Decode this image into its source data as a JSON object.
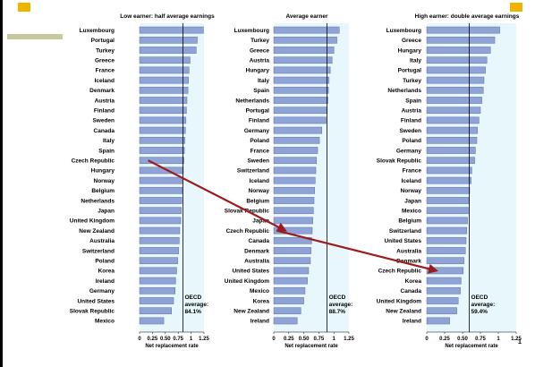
{
  "slide_number": "1",
  "colors": {
    "bar": "#8fa3d6",
    "bar_edge": "#5f72a8",
    "plot_bg": "#e8f7fb",
    "arrow": "#9b1c1c",
    "accent_gold": "#f0b400",
    "accent_olive": "#c8c8a0"
  },
  "arrow_path": [
    "Czech Republic",
    "Czech Republic",
    "Czech Republic"
  ],
  "chart_data": [
    {
      "type": "bar",
      "orientation": "horizontal",
      "title": "Low earner: half average earnings",
      "xlabel": "Net replacement rate",
      "xlim": [
        0,
        1.25
      ],
      "xticks": [
        "0",
        "0.25",
        "0.50",
        "0.75",
        "1",
        "1.25"
      ],
      "average_line": 0.841,
      "annotation": [
        "OECD",
        "average:",
        "84.1%"
      ],
      "categories": [
        "Luxembourg",
        "Portugal",
        "Turkey",
        "Greece",
        "France",
        "Iceland",
        "Denmark",
        "Austria",
        "Finland",
        "Sweden",
        "Canada",
        "Italy",
        "Spain",
        "Czech Republic",
        "Hungary",
        "Norway",
        "Belgium",
        "Netherlands",
        "Japan",
        "United Kingdom",
        "New Zealand",
        "Australia",
        "Switzerland",
        "Poland",
        "Korea",
        "Ireland",
        "Germany",
        "United States",
        "Slovak Republic",
        "Mexico"
      ],
      "values": [
        1.24,
        1.12,
        1.1,
        0.98,
        0.96,
        0.95,
        0.94,
        0.92,
        0.91,
        0.9,
        0.89,
        0.88,
        0.87,
        0.86,
        0.85,
        0.84,
        0.83,
        0.82,
        0.81,
        0.8,
        0.78,
        0.77,
        0.76,
        0.74,
        0.72,
        0.7,
        0.69,
        0.66,
        0.62,
        0.47
      ]
    },
    {
      "type": "bar",
      "orientation": "horizontal",
      "title": "Average earner",
      "xlabel": "Net replacement rate",
      "xlim": [
        0,
        1.25
      ],
      "xticks": [
        "0",
        "0.25",
        "0.50",
        "0.75",
        "1",
        "1.25"
      ],
      "average_line": 0.887,
      "annotation": [
        "OECD",
        "average:",
        "88.7%"
      ],
      "categories": [
        "Luxembourg",
        "Turkey",
        "Greece",
        "Austria",
        "Hungary",
        "Italy",
        "Spain",
        "Netherlands",
        "Portugal",
        "Finland",
        "Germany",
        "Poland",
        "France",
        "Sweden",
        "Switzerland",
        "Iceland",
        "Norway",
        "Belgium",
        "Slovak Republic",
        "Japan",
        "Czech Republic",
        "Canada",
        "Denmark",
        "Australia",
        "United States",
        "United Kingdom",
        "Mexico",
        "Korea",
        "New Zealand",
        "Ireland"
      ],
      "values": [
        1.09,
        1.05,
        1.0,
        0.97,
        0.94,
        0.92,
        0.91,
        0.9,
        0.89,
        0.87,
        0.8,
        0.76,
        0.73,
        0.71,
        0.7,
        0.69,
        0.68,
        0.67,
        0.66,
        0.65,
        0.64,
        0.63,
        0.62,
        0.61,
        0.58,
        0.56,
        0.52,
        0.5,
        0.45,
        0.39
      ]
    },
    {
      "type": "bar",
      "orientation": "horizontal",
      "title": "High earner: double average earnings",
      "xlabel": "Net replacement rate",
      "xlim": [
        0,
        1.25
      ],
      "xticks": [
        "0",
        "0.25",
        "0.50",
        "0.75",
        "1",
        "1.25"
      ],
      "average_line": 0.594,
      "annotation": [
        "OECD",
        "average:",
        "59.4%"
      ],
      "categories": [
        "Luxembourg",
        "Greece",
        "Hungary",
        "Italy",
        "Portugal",
        "Turkey",
        "Netherlands",
        "Spain",
        "Austria",
        "Finland",
        "Sweden",
        "Poland",
        "Germany",
        "Slovak Republic",
        "France",
        "Iceland",
        "Norway",
        "Japan",
        "Mexico",
        "Belgium",
        "Switzerland",
        "United States",
        "Australia",
        "Denmark",
        "Czech Republic",
        "Korea",
        "Canada",
        "United Kingdom",
        "New Zealand",
        "Ireland"
      ],
      "values": [
        1.02,
        0.95,
        0.89,
        0.84,
        0.82,
        0.8,
        0.79,
        0.77,
        0.75,
        0.73,
        0.71,
        0.7,
        0.68,
        0.67,
        0.63,
        0.62,
        0.6,
        0.59,
        0.58,
        0.57,
        0.56,
        0.55,
        0.54,
        0.52,
        0.51,
        0.48,
        0.47,
        0.44,
        0.42,
        0.32
      ]
    }
  ]
}
